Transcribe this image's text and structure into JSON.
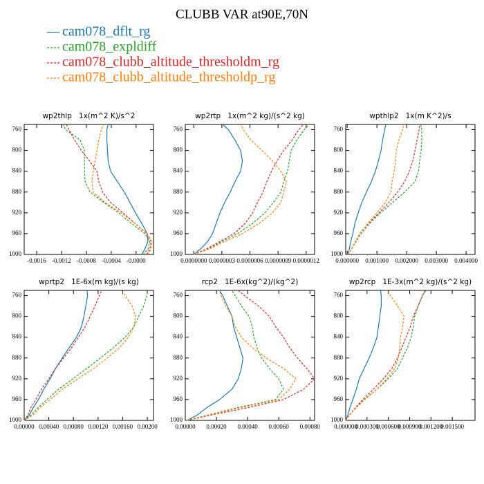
{
  "title": "CLUBB VAR at90E,70N",
  "legend": [
    {
      "name": "cam078_dflt_rg",
      "color": "#1f77b4",
      "style": "solid"
    },
    {
      "name": "cam078_expldiff",
      "color": "#2ca02c",
      "style": "dashed"
    },
    {
      "name": "cam078_clubb_altitude_thresholdm_rg",
      "color": "#d62728",
      "style": "dashed"
    },
    {
      "name": "cam078_clubb_altitude_thresholdp_rg",
      "color": "#ff7f0e",
      "style": "dashed"
    }
  ],
  "chart_data": [
    {
      "type": "line",
      "title": "wp2thlp   1x(m^2 K)/s^2",
      "y": [
        1000,
        990,
        975,
        960,
        940,
        920,
        900,
        880,
        860,
        840,
        820,
        800,
        780,
        760,
        750
      ],
      "xlim": [
        -0.0018,
        0.00028
      ],
      "ylim": [
        1000,
        750
      ],
      "xticks": [
        -0.0016,
        -0.0012,
        -0.0008,
        -0.0004,
        {
          "value": 0,
          "label": "-0.0000"
        }
      ],
      "yticks": [
        760,
        800,
        840,
        880,
        920,
        960,
        1000
      ],
      "series": [
        {
          "values": [
            9e-05,
            0.00014,
            0.00019,
            0.00018,
            9e-05,
            -1e-05,
            -0.0001,
            -0.00019,
            -0.0003,
            -0.00041,
            -0.00045,
            -0.00046,
            -0.00047,
            -0.00047,
            -0.00045
          ]
        },
        {
          "values": [
            0.00011,
            0.00019,
            0.00022,
            0.00014,
            -8e-05,
            -0.00028,
            -0.00052,
            -0.00074,
            -0.00082,
            -0.00083,
            -0.00083,
            -0.00083,
            -0.0009,
            -0.00113,
            -0.00118
          ]
        },
        {
          "values": [
            0.00017,
            0.00022,
            0.00024,
            0.00017,
            -2e-05,
            -0.00021,
            -0.00041,
            -0.00054,
            -0.0006,
            -0.00063,
            -0.00075,
            -0.00088,
            -0.00099,
            -0.00108,
            -0.00112
          ]
        },
        {
          "values": [
            0.00019,
            0.00024,
            0.00025,
            0.00018,
            -2e-05,
            -0.00024,
            -0.0005,
            -0.00069,
            -0.00071,
            -0.00069,
            -0.00066,
            -0.00063,
            -0.0006,
            -0.00056,
            -0.00052
          ]
        }
      ]
    },
    {
      "type": "line",
      "title": "wp2rtp   1x(m^2 kg)/(s^2 kg)",
      "y": [
        1000,
        990,
        975,
        960,
        940,
        920,
        900,
        880,
        860,
        840,
        820,
        800,
        780,
        760,
        750
      ],
      "xlim": [
        -9e-08,
        1.29e-06
      ],
      "ylim": [
        1000,
        750
      ],
      "xticks": [
        {
          "value": 0,
          "label": "0.0000000"
        },
        {
          "value": 3e-07,
          "label": "0.0000003"
        },
        {
          "value": 6e-07,
          "label": "0.0000006"
        },
        {
          "value": 9e-07,
          "label": "0.0000009"
        },
        {
          "value": 1.2e-06,
          "label": "0.0000012"
        }
      ],
      "yticks": [
        760,
        800,
        840,
        880,
        920,
        960,
        1000
      ],
      "series": [
        {
          "values": [
            0,
            7e-08,
            1.5e-07,
            2e-07,
            2.4e-07,
            2.8e-07,
            3.3e-07,
            3.9e-07,
            4.4e-07,
            5e-07,
            5.2e-07,
            5e-07,
            4.4e-07,
            3.7e-07,
            3.1e-07
          ]
        },
        {
          "values": [
            0,
            1.5e-07,
            3e-07,
            4.7e-07,
            6.3e-07,
            7.6e-07,
            8.5e-07,
            9.3e-07,
            9.6e-07,
            1e-06,
            1.02e-06,
            1.04e-06,
            1.1e-06,
            1.18e-06,
            1.23e-06
          ]
        },
        {
          "values": [
            0,
            1.3e-07,
            2.8e-07,
            4.3e-07,
            5.5e-07,
            6.3e-07,
            6.8e-07,
            7.4e-07,
            7.8e-07,
            8.3e-07,
            8.9e-07,
            9.6e-07,
            1.05e-06,
            1.12e-06,
            1.17e-06
          ]
        },
        {
          "values": [
            0,
            1.6e-07,
            3.3e-07,
            5.2e-07,
            7e-07,
            8.4e-07,
            9.3e-07,
            9.6e-07,
            9.9e-07,
            9.3e-07,
            8.4e-07,
            7.3e-07,
            6.1e-07,
            5.3e-07,
            5e-07
          ]
        }
      ]
    },
    {
      "type": "line",
      "title": "wpthlp2   1x(m K^2)/s",
      "y": [
        1000,
        990,
        975,
        960,
        940,
        920,
        900,
        880,
        860,
        840,
        820,
        800,
        780,
        760,
        750
      ],
      "xlim": [
        -5e-05,
        0.0043
      ],
      "ylim": [
        1000,
        750
      ],
      "xticks": [
        {
          "value": 0,
          "label": "0.000000"
        },
        {
          "value": 0.001,
          "label": "0.001000"
        },
        {
          "value": 0.002,
          "label": "0.002000"
        },
        {
          "value": 0.003,
          "label": "0.003000"
        },
        {
          "value": 0.004,
          "label": "0.004000"
        }
      ],
      "yticks": [
        760,
        800,
        840,
        880,
        920,
        960,
        1000
      ],
      "series": [
        {
          "values": [
            0,
            7e-05,
            0.00012,
            0.00019,
            0.00026,
            0.00037,
            0.00049,
            0.00065,
            0.00081,
            0.00095,
            0.00105,
            0.00114,
            0.00119,
            0.00126,
            0.0013
          ]
        },
        {
          "values": [
            2e-05,
            0.00014,
            0.0003,
            0.00047,
            0.00077,
            0.00112,
            0.00153,
            0.00193,
            0.00228,
            0.0024,
            0.00244,
            0.00249,
            0.00251,
            0.00251,
            0.00247
          ]
        },
        {
          "values": [
            2e-05,
            0.00014,
            0.00028,
            0.00042,
            0.00072,
            0.00107,
            0.0014,
            0.0017,
            0.00193,
            0.00209,
            0.00221,
            0.00228,
            0.00235,
            0.00242,
            0.00244
          ]
        },
        {
          "values": [
            2e-05,
            0.00014,
            0.00028,
            0.00042,
            0.0007,
            0.001,
            0.00128,
            0.00147,
            0.00151,
            0.00158,
            0.00163,
            0.00165,
            0.00174,
            0.00186,
            0.0019
          ]
        }
      ]
    },
    {
      "type": "line",
      "title": "wprtp2   1E-6x(m kg)/(s kg)",
      "y": [
        1000,
        990,
        975,
        960,
        940,
        920,
        900,
        880,
        860,
        840,
        820,
        800,
        780,
        760,
        750
      ],
      "xlim": [
        0,
        0.0021
      ],
      "ylim": [
        1000,
        750
      ],
      "xticks": [
        {
          "value": 0,
          "label": "0.00000"
        },
        {
          "value": 0.0004,
          "label": "0.00040"
        },
        {
          "value": 0.0008,
          "label": "0.00080"
        },
        {
          "value": 0.0012,
          "label": "0.00120"
        },
        {
          "value": 0.0016,
          "label": "0.00160"
        },
        {
          "value": 0.002,
          "label": "0.00200"
        }
      ],
      "yticks": [
        760,
        800,
        840,
        880,
        920,
        960,
        1000
      ],
      "series": [
        {
          "values": [
            0,
            8e-05,
            0.00015,
            0.00023,
            0.00032,
            0.00042,
            0.00051,
            0.00062,
            0.00073,
            0.00085,
            0.00093,
            0.00097,
            0.001,
            0.00103,
            0.00102
          ]
        },
        {
          "values": [
            0,
            0.00011,
            0.00023,
            0.00037,
            0.00056,
            0.00079,
            0.00102,
            0.00124,
            0.00145,
            0.00164,
            0.00178,
            0.00186,
            0.00194,
            0.00199,
            0.00201
          ]
        },
        {
          "values": [
            0,
            6e-05,
            0.00011,
            0.00019,
            0.00028,
            0.0004,
            0.00051,
            0.00064,
            0.00077,
            0.00088,
            0.00099,
            0.00107,
            0.00115,
            0.00122,
            0.00126
          ]
        },
        {
          "values": [
            0,
            0.00014,
            0.00026,
            0.00042,
            0.00062,
            0.00087,
            0.00113,
            0.00135,
            0.00155,
            0.00169,
            0.00178,
            0.00181,
            0.00175,
            0.00164,
            0.00158
          ]
        }
      ]
    },
    {
      "type": "line",
      "title": "rcp2   1E-6x(kg^2)/(kg^2)",
      "y": [
        1000,
        990,
        975,
        960,
        940,
        920,
        900,
        880,
        860,
        840,
        820,
        800,
        780,
        760,
        750
      ],
      "xlim": [
        0,
        0.00083
      ],
      "ylim": [
        1000,
        750
      ],
      "xticks": [
        {
          "value": 0,
          "label": "0.00000"
        },
        {
          "value": 0.0002,
          "label": "0.00020"
        },
        {
          "value": 0.0004,
          "label": "0.00040"
        },
        {
          "value": 0.0006,
          "label": "0.00060"
        },
        {
          "value": 0.0008,
          "label": "0.00080"
        }
      ],
      "yticks": [
        760,
        800,
        840,
        880,
        920,
        960,
        1000
      ],
      "series": [
        {
          "values": [
            1e-05,
            7.5e-05,
            0.00014,
            0.00022,
            0.0003,
            0.00034,
            0.00036,
            0.00037,
            0.00035,
            0.00033,
            0.00031,
            0.0003,
            0.00027,
            0.00024,
            0.00022
          ]
        },
        {
          "values": [
            1e-05,
            0.00014,
            0.00034,
            0.00058,
            0.00063,
            0.0006,
            0.00054,
            0.00049,
            0.00046,
            0.00044,
            0.00043,
            0.00041,
            0.00036,
            0.00032,
            0.0003
          ]
        },
        {
          "values": [
            1e-05,
            0.00016,
            0.00041,
            0.00063,
            0.00076,
            0.00083,
            0.00078,
            0.00072,
            0.00067,
            0.00063,
            0.00058,
            0.00054,
            0.00047,
            0.00038,
            0.00034
          ]
        },
        {
          "values": [
            1e-05,
            0.00014,
            0.00036,
            0.0006,
            0.00067,
            0.00071,
            0.00063,
            0.00052,
            0.00043,
            0.00036,
            0.00032,
            0.0003,
            0.00026,
            0.00023,
            0.00022
          ]
        }
      ]
    },
    {
      "type": "line",
      "title": "wp2rcp   1E-3x(m^2 kg)/(s^2 kg)",
      "y": [
        1000,
        990,
        975,
        960,
        940,
        920,
        900,
        880,
        860,
        840,
        820,
        800,
        780,
        760,
        750
      ],
      "xlim": [
        0,
        0.00182
      ],
      "ylim": [
        1000,
        750
      ],
      "xticks": [
        {
          "value": 0,
          "label": "0.000000"
        },
        {
          "value": 0.0003,
          "label": "0.000300"
        },
        {
          "value": 0.0006,
          "label": "0.000600"
        },
        {
          "value": 0.0009,
          "label": "0.000900"
        },
        {
          "value": 0.0012,
          "label": "0.001200"
        },
        {
          "value": 0.0015,
          "label": "0.001500"
        }
      ],
      "yticks": [
        760,
        800,
        840,
        880,
        920,
        960,
        1000
      ],
      "series": [
        {
          "values": [
            0,
            3e-05,
            6e-05,
            0.0001,
            0.00015,
            0.00019,
            0.00026,
            0.00033,
            0.00039,
            0.00044,
            0.00046,
            0.00048,
            0.0005,
            0.0005,
            0.00049
          ]
        },
        {
          "values": [
            0,
            5e-05,
            0.00015,
            0.00026,
            0.00044,
            0.0006,
            0.00073,
            0.0008,
            0.00087,
            0.00092,
            0.00095,
            0.00097,
            0.00102,
            0.00108,
            0.00113
          ]
        },
        {
          "values": [
            0,
            5e-05,
            0.00014,
            0.00024,
            0.00039,
            0.00053,
            0.00065,
            0.00073,
            0.00079,
            0.00085,
            0.00091,
            0.00095,
            0.00102,
            0.00108,
            0.00112
          ]
        },
        {
          "values": [
            0,
            5e-05,
            0.00015,
            0.00027,
            0.00044,
            0.00058,
            0.00069,
            0.00074,
            0.00076,
            0.00077,
            0.0008,
            0.00082,
            0.00073,
            0.00063,
            0.00058
          ]
        }
      ]
    }
  ]
}
